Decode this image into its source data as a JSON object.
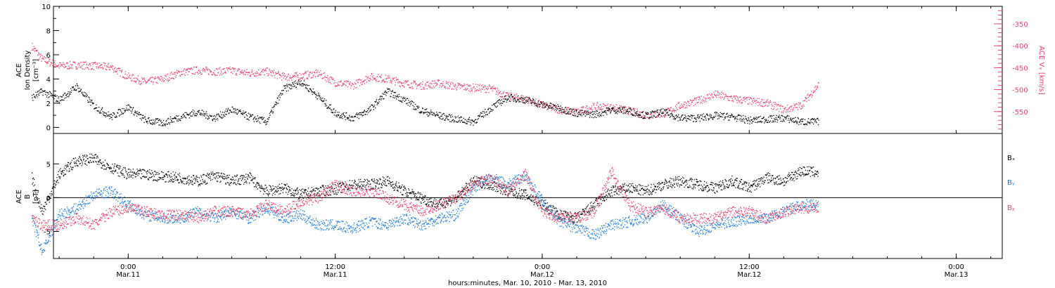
{
  "chart_data": [
    {
      "type": "scatter",
      "title": "",
      "xlabel": "hours:minutes, Mar. 10, 2010 - Mar. 13, 2010",
      "xlim": [
        "2010-03-10T19:40",
        "2010-03-13T02:40"
      ],
      "x_ticks": [
        {
          "time": "2010-03-11T00:00",
          "label": "0:00",
          "sublabel": "Mar.11"
        },
        {
          "time": "2010-03-11T12:00",
          "label": "12:00",
          "sublabel": "Mar.11"
        },
        {
          "time": "2010-03-12T00:00",
          "label": "0:00",
          "sublabel": "Mar.12"
        },
        {
          "time": "2010-03-12T12:00",
          "label": "12:00",
          "sublabel": "Mar.12"
        },
        {
          "time": "2010-03-13T00:00",
          "label": "0:00",
          "sublabel": "Mar.13"
        }
      ],
      "y_left": {
        "label_lines": [
          "ACE",
          "Ion Density",
          "[cm⁻³]"
        ],
        "ylim": [
          -0.5,
          10
        ],
        "ticks": [
          "0",
          "2",
          "4",
          "6",
          "8",
          "10"
        ]
      },
      "y_right": {
        "label": "ACE Vₓ [km/s]",
        "ylim": [
          -600,
          -310
        ],
        "ticks": [
          "-350",
          "-400",
          "-450",
          "-500",
          "-550"
        ],
        "color": "#e8436a"
      },
      "series": [
        {
          "axis": "left",
          "color": "#000000",
          "x_hours_labels": "hours relative to 2010-03-11 00:00",
          "points": [
            [
              -5.6,
              2.5
            ],
            [
              -5,
              3
            ],
            [
              -4,
              2.3
            ],
            [
              -3,
              3.4
            ],
            [
              -2,
              1.8
            ],
            [
              -1,
              0.9
            ],
            [
              0,
              1.7
            ],
            [
              1,
              0.6
            ],
            [
              2,
              0.4
            ],
            [
              3,
              0.9
            ],
            [
              4,
              1.3
            ],
            [
              5,
              0.8
            ],
            [
              6,
              1.5
            ],
            [
              7,
              0.9
            ],
            [
              8,
              0.5
            ],
            [
              9,
              3.2
            ],
            [
              10,
              3.8
            ],
            [
              11,
              2.6
            ],
            [
              12,
              1.2
            ],
            [
              13,
              0.8
            ],
            [
              14,
              1.5
            ],
            [
              15,
              3
            ],
            [
              16,
              2.3
            ],
            [
              17,
              1.4
            ],
            [
              18,
              1
            ],
            [
              19,
              0.7
            ],
            [
              20,
              0.5
            ],
            [
              21,
              1.6
            ],
            [
              22,
              2.5
            ],
            [
              23,
              2.3
            ],
            [
              24,
              1.9
            ],
            [
              25,
              1.6
            ],
            [
              26,
              1.2
            ],
            [
              27,
              1.1
            ],
            [
              28,
              1.5
            ],
            [
              29,
              1.4
            ],
            [
              30,
              1
            ],
            [
              31,
              1.3
            ],
            [
              32,
              0.8
            ],
            [
              33,
              0.8
            ],
            [
              34,
              1
            ],
            [
              35,
              0.9
            ],
            [
              36,
              0.6
            ],
            [
              37,
              0.7
            ],
            [
              38,
              0.8
            ],
            [
              39,
              0.5
            ],
            [
              40,
              0.5
            ]
          ]
        },
        {
          "axis": "right",
          "color": "#e8436a",
          "points": [
            [
              -5.6,
              -400
            ],
            [
              -5,
              -430
            ],
            [
              -4,
              -445
            ],
            [
              -3,
              -443
            ],
            [
              -2,
              -445
            ],
            [
              -1,
              -448
            ],
            [
              0,
              -470
            ],
            [
              1,
              -482
            ],
            [
              2,
              -475
            ],
            [
              3,
              -460
            ],
            [
              4,
              -455
            ],
            [
              5,
              -458
            ],
            [
              6,
              -456
            ],
            [
              7,
              -462
            ],
            [
              8,
              -458
            ],
            [
              9,
              -470
            ],
            [
              10,
              -468
            ],
            [
              11,
              -462
            ],
            [
              12,
              -483
            ],
            [
              13,
              -490
            ],
            [
              14,
              -470
            ],
            [
              15,
              -475
            ],
            [
              16,
              -485
            ],
            [
              17,
              -490
            ],
            [
              18,
              -485
            ],
            [
              19,
              -492
            ],
            [
              20,
              -495
            ],
            [
              21,
              -497
            ],
            [
              22,
              -515
            ],
            [
              23,
              -520
            ],
            [
              24,
              -535
            ],
            [
              25,
              -545
            ],
            [
              26,
              -550
            ],
            [
              27,
              -538
            ],
            [
              28,
              -540
            ],
            [
              29,
              -547
            ],
            [
              30,
              -558
            ],
            [
              31,
              -555
            ],
            [
              32,
              -535
            ],
            [
              33,
              -525
            ],
            [
              34,
              -510
            ],
            [
              35,
              -520
            ],
            [
              36,
              -525
            ],
            [
              37,
              -530
            ],
            [
              38,
              -545
            ],
            [
              39,
              -535
            ],
            [
              40,
              -488
            ]
          ]
        }
      ]
    },
    {
      "type": "scatter",
      "title": "",
      "y_left": {
        "label_lines": [
          "ACE",
          "B",
          "[nT]"
        ],
        "ylim": [
          -9,
          9.5
        ],
        "ticks": [
          "-5",
          "0",
          "5"
        ]
      },
      "zero_line": true,
      "legend": [
        {
          "name": "Bₓ",
          "color": "#000000"
        },
        {
          "name": "Bᵧ",
          "color": "#1e7ad6"
        },
        {
          "name": "Bᵪ",
          "color": "#e8436a"
        }
      ],
      "series": [
        {
          "name": "Bx",
          "color": "#000000",
          "points": [
            [
              -5.6,
              3
            ],
            [
              -5,
              -2
            ],
            [
              -4,
              3.5
            ],
            [
              -3,
              5.5
            ],
            [
              -2,
              5.8
            ],
            [
              -1,
              4.5
            ],
            [
              0,
              3.5
            ],
            [
              1,
              3.5
            ],
            [
              2,
              3.2
            ],
            [
              3,
              3
            ],
            [
              4,
              2.5
            ],
            [
              5,
              3.3
            ],
            [
              6,
              2.5
            ],
            [
              7,
              3
            ],
            [
              8,
              1
            ],
            [
              9,
              1.5
            ],
            [
              10,
              0.5
            ],
            [
              11,
              1
            ],
            [
              12,
              1.3
            ],
            [
              13,
              2
            ],
            [
              14,
              2
            ],
            [
              15,
              2.5
            ],
            [
              16,
              1
            ],
            [
              17,
              0
            ],
            [
              18,
              -1
            ],
            [
              19,
              0
            ],
            [
              20,
              2.5
            ],
            [
              21,
              2
            ],
            [
              22,
              1
            ],
            [
              23,
              0.5
            ],
            [
              24,
              -1
            ],
            [
              25,
              -2.5
            ],
            [
              26,
              -3
            ],
            [
              27,
              -1
            ],
            [
              28,
              1
            ],
            [
              29,
              1.5
            ],
            [
              30,
              1
            ],
            [
              31,
              2
            ],
            [
              32,
              2.5
            ],
            [
              33,
              2
            ],
            [
              34,
              1.5
            ],
            [
              35,
              2.5
            ],
            [
              36,
              1.5
            ],
            [
              37,
              3
            ],
            [
              38,
              2.5
            ],
            [
              39,
              4
            ],
            [
              40,
              3.8
            ]
          ]
        },
        {
          "name": "By",
          "color": "#1e7ad6",
          "points": [
            [
              -5.6,
              -3
            ],
            [
              -5,
              -8
            ],
            [
              -4,
              -2.5
            ],
            [
              -3,
              -1.5
            ],
            [
              -2,
              0.5
            ],
            [
              -1,
              1
            ],
            [
              0,
              -1
            ],
            [
              1,
              -2.5
            ],
            [
              2,
              -3
            ],
            [
              3,
              -3
            ],
            [
              4,
              -2
            ],
            [
              5,
              -3
            ],
            [
              6,
              -2
            ],
            [
              7,
              -3
            ],
            [
              8,
              -1.5
            ],
            [
              9,
              -3
            ],
            [
              10,
              -2.5
            ],
            [
              11,
              -4
            ],
            [
              12,
              -4
            ],
            [
              13,
              -4.5
            ],
            [
              14,
              -3.5
            ],
            [
              15,
              -4
            ],
            [
              16,
              -3
            ],
            [
              17,
              -4
            ],
            [
              18,
              -3
            ],
            [
              19,
              -2.5
            ],
            [
              20,
              1.5
            ],
            [
              21,
              3
            ],
            [
              22,
              2
            ],
            [
              23,
              3.3
            ],
            [
              24,
              -0.5
            ],
            [
              25,
              -3.5
            ],
            [
              26,
              -4.5
            ],
            [
              27,
              -5.5
            ],
            [
              28,
              -4
            ],
            [
              29,
              -3.5
            ],
            [
              30,
              -3
            ],
            [
              31,
              -1
            ],
            [
              32,
              -3
            ],
            [
              33,
              -5
            ],
            [
              34,
              -4
            ],
            [
              35,
              -3.5
            ],
            [
              36,
              -3
            ],
            [
              37,
              -3
            ],
            [
              38,
              -2
            ],
            [
              39,
              -1
            ],
            [
              40,
              -1
            ]
          ]
        },
        {
          "name": "Bz",
          "color": "#e8436a",
          "points": [
            [
              -5.6,
              -3
            ],
            [
              -5,
              -4
            ],
            [
              -4,
              -4
            ],
            [
              -3,
              -3
            ],
            [
              -2,
              -4
            ],
            [
              -1,
              -2
            ],
            [
              0,
              -1.5
            ],
            [
              1,
              -2
            ],
            [
              2,
              -2.5
            ],
            [
              3,
              -2.5
            ],
            [
              4,
              -3
            ],
            [
              5,
              -2
            ],
            [
              6,
              -2
            ],
            [
              7,
              -2.5
            ],
            [
              8,
              -1
            ],
            [
              9,
              -2
            ],
            [
              10,
              -0.5
            ],
            [
              11,
              0
            ],
            [
              12,
              2
            ],
            [
              13,
              1
            ],
            [
              14,
              1
            ],
            [
              15,
              0
            ],
            [
              16,
              -1
            ],
            [
              17,
              -2
            ],
            [
              18,
              -1
            ],
            [
              19,
              0
            ],
            [
              20,
              2
            ],
            [
              21,
              3
            ],
            [
              22,
              1
            ],
            [
              23,
              3.5
            ],
            [
              24,
              -2
            ],
            [
              25,
              -3
            ],
            [
              26,
              -3
            ],
            [
              27,
              -2
            ],
            [
              28,
              4
            ],
            [
              29,
              -1
            ],
            [
              30,
              -2
            ],
            [
              31,
              -1.5
            ],
            [
              32,
              -3
            ],
            [
              33,
              -3
            ],
            [
              34,
              -3
            ],
            [
              35,
              -2
            ],
            [
              36,
              -2
            ],
            [
              37,
              -3
            ],
            [
              38,
              -2
            ],
            [
              39,
              -1.5
            ],
            [
              40,
              -1.5
            ]
          ]
        }
      ]
    }
  ]
}
